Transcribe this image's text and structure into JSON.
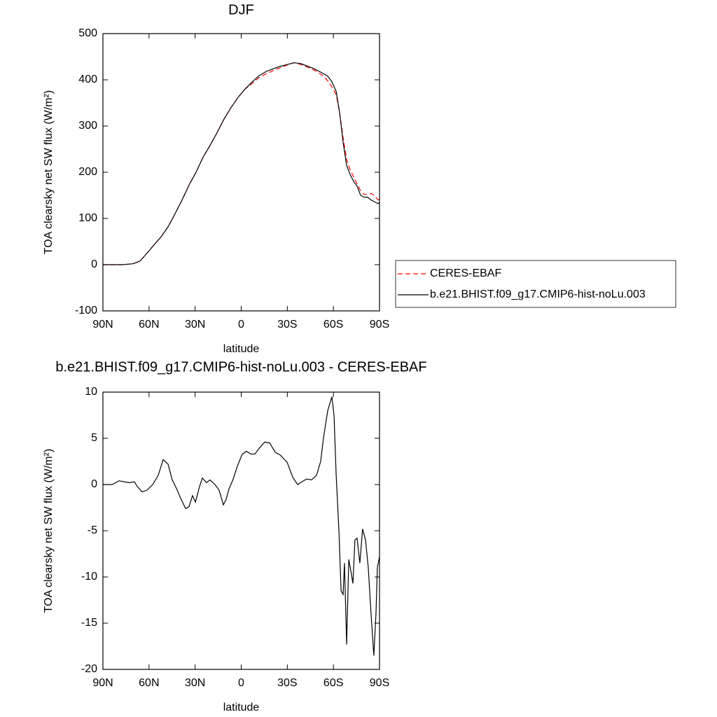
{
  "chart_data": [
    {
      "type": "line",
      "title": "DJF",
      "x_label": "latitude",
      "y_label": "TOA clearsky net SW flux (W/m²)",
      "legend": "right",
      "xlim": [
        90,
        -90
      ],
      "xticks": [
        {
          "value": 90,
          "label": "90N"
        },
        {
          "value": 60,
          "label": "60N"
        },
        {
          "value": 30,
          "label": "30N"
        },
        0,
        {
          "value": -30,
          "label": "30S"
        },
        {
          "value": -60,
          "label": "60S"
        },
        {
          "value": -90,
          "label": "90S"
        }
      ],
      "ylim": [
        -100,
        500
      ],
      "yticks": [
        -100,
        0,
        100,
        200,
        300,
        400,
        500
      ],
      "x": [
        90,
        77.2,
        70.4,
        65.8,
        61.3,
        56.7,
        52.2,
        47.6,
        43.1,
        38.5,
        34.0,
        29.4,
        24.9,
        20.3,
        15.8,
        11.2,
        6.6,
        2.1,
        -2.5,
        -7.0,
        -11.6,
        -16.2,
        -20.8,
        -25.3,
        -29.9,
        -34.4,
        -39.0,
        -43.5,
        -48.1,
        -52.7,
        -56.3,
        -59.0,
        -61.8,
        -64.0,
        -66.3,
        -68.6,
        -70.9,
        -73.2,
        -75.4,
        -77.7,
        -80.0,
        -82.3,
        -84.5,
        -86.8,
        -89.1,
        -90
      ],
      "series": [
        {
          "name": "CERES-EBAF",
          "color": "#ff0000",
          "line_style": "dashed",
          "values": [
            0,
            0,
            2,
            8,
            25,
            43,
            60,
            82,
            110,
            140,
            172,
            200,
            232,
            258,
            285,
            315,
            340,
            362,
            380,
            392,
            405,
            413,
            420,
            426,
            432,
            437,
            433,
            427,
            420,
            410,
            398,
            385,
            368,
            330,
            275,
            228,
            205,
            190,
            175,
            160,
            152,
            152,
            154,
            150,
            140,
            142
          ]
        },
        {
          "name": "b.e21.BHIST.f09_g17.CMIP6-hist-noLu.003",
          "color": "#000000",
          "line_style": "solid",
          "values": [
            0,
            0,
            2,
            8,
            25,
            43,
            60,
            82,
            110,
            140,
            172,
            200,
            232,
            258,
            285,
            315,
            340,
            362,
            380,
            395,
            409,
            418,
            424,
            429,
            433,
            437,
            435,
            429,
            423,
            415,
            408,
            396,
            375,
            330,
            265,
            215,
            195,
            180,
            170,
            150,
            146,
            146,
            140,
            136,
            132,
            135
          ]
        }
      ]
    },
    {
      "type": "line",
      "title": "b.e21.BHIST.f09_g17.CMIP6-hist-noLu.003 - CERES-EBAF",
      "x_label": "latitude",
      "y_label": "TOA clearsky net SW flux (W/m²)",
      "xlim": [
        90,
        -90
      ],
      "xticks": [
        {
          "value": 90,
          "label": "90N"
        },
        {
          "value": 60,
          "label": "60N"
        },
        {
          "value": 30,
          "label": "30N"
        },
        0,
        {
          "value": -30,
          "label": "30S"
        },
        {
          "value": -60,
          "label": "60S"
        },
        {
          "value": -90,
          "label": "90S"
        }
      ],
      "ylim": [
        -20,
        10
      ],
      "yticks": [
        -20,
        -15,
        -10,
        -5,
        0,
        5,
        10
      ],
      "x": [
        90,
        84,
        79.5,
        72.7,
        69.5,
        67.7,
        64.5,
        61.3,
        57.6,
        54,
        50.8,
        47.6,
        44.9,
        42.2,
        39.4,
        36.2,
        34,
        31.7,
        29.8,
        27.1,
        25.3,
        22.6,
        20.3,
        17.1,
        14.4,
        11.6,
        9.8,
        8,
        5.2,
        2.5,
        -0.7,
        -3.4,
        -6.2,
        -8.9,
        -11.6,
        -15.3,
        -18.5,
        -22.1,
        -25.3,
        -29.9,
        -33.5,
        -36.7,
        -39.5,
        -42.6,
        -45.8,
        -49,
        -51.7,
        -53.5,
        -56.3,
        -59,
        -60.4,
        -61.8,
        -63.6,
        -65,
        -66.3,
        -67.2,
        -68.6,
        -70,
        -71.3,
        -72.7,
        -74,
        -75.4,
        -77.2,
        -79,
        -80.9,
        -82.7,
        -84.5,
        -86.3,
        -87.7,
        -88.6,
        -90
      ],
      "series": [
        {
          "color": "#000000",
          "line_style": "solid",
          "values": [
            0,
            0,
            0.4,
            0.2,
            0.3,
            -0.2,
            -0.8,
            -0.6,
            0,
            1.0,
            2.7,
            2.2,
            0.5,
            -0.4,
            -1.5,
            -2.6,
            -2.4,
            -1.2,
            -1.9,
            -0.2,
            0.7,
            0.2,
            0.5,
            0,
            -0.6,
            -2.2,
            -1.6,
            -0.5,
            0.6,
            2,
            3.3,
            3.6,
            3.3,
            3.3,
            3.9,
            4.6,
            4.5,
            3.5,
            3.2,
            2.4,
            0.8,
            0,
            0.3,
            0.6,
            0.5,
            1.0,
            2.5,
            5.0,
            8,
            9.5,
            7.5,
            1,
            -5,
            -11.5,
            -11.9,
            -8.5,
            -17.3,
            -8.1,
            -9.3,
            -10.7,
            -6,
            -5.8,
            -8.5,
            -4.8,
            -6,
            -9,
            -14,
            -18.5,
            -14,
            -9,
            -7.8
          ]
        }
      ]
    }
  ]
}
